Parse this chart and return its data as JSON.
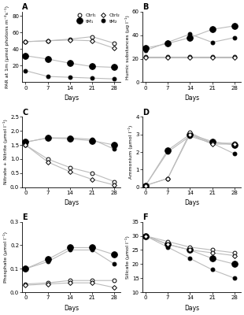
{
  "days": [
    0,
    7,
    14,
    21,
    28
  ],
  "panel_A": {
    "title": "A",
    "ylabel": "PAR at 1m (μmol photons m⁻²s⁻¹)",
    "xlabel": "Days",
    "ylim": [
      0,
      85
    ],
    "yticks": [
      20,
      40,
      60,
      80
    ],
    "ctrl1": [
      49,
      50,
      52,
      55,
      47
    ],
    "ctrl2": [
      49,
      50,
      51,
      50,
      41
    ],
    "tM1": [
      32,
      28,
      23,
      19,
      18
    ],
    "tM2": [
      14,
      7,
      6,
      5,
      4
    ]
  },
  "panel_B": {
    "title": "B",
    "ylabel": "Humic substances (μg l⁻¹)",
    "xlabel": "Days",
    "ylim": [
      0,
      60
    ],
    "yticks": [
      0,
      20,
      40,
      60
    ],
    "ctrl1": [
      22,
      22,
      22,
      22,
      22
    ],
    "ctrl2": [
      21,
      21,
      21,
      21,
      21
    ],
    "tM1": [
      29,
      33,
      38,
      45,
      48
    ],
    "tM2": [
      27,
      34,
      41,
      34,
      38
    ]
  },
  "panel_C": {
    "title": "C",
    "ylabel": "Nitrate + Nitrite (μmol l⁻¹)",
    "xlabel": "Days",
    "ylim": [
      0,
      2.5
    ],
    "yticks": [
      0,
      0.5,
      1.0,
      1.5,
      2.0,
      2.5
    ],
    "ctrl1": [
      1.5,
      1.0,
      0.7,
      0.5,
      0.2
    ],
    "ctrl2": [
      1.5,
      0.9,
      0.55,
      0.28,
      0.08
    ],
    "tM1": [
      1.6,
      1.75,
      1.72,
      1.65,
      1.5
    ],
    "tM2": [
      1.6,
      1.75,
      1.75,
      1.7,
      1.35
    ]
  },
  "panel_D": {
    "title": "D",
    "ylabel": "Ammonium (μmol l⁻¹)",
    "xlabel": "Days",
    "ylim": [
      0,
      4
    ],
    "yticks": [
      0,
      1,
      2,
      3,
      4
    ],
    "ctrl1": [
      0.1,
      0.5,
      3.1,
      2.5,
      2.5
    ],
    "ctrl2": [
      0.1,
      0.5,
      3.0,
      2.45,
      2.45
    ],
    "tM1": [
      0.1,
      2.1,
      3.0,
      2.6,
      2.4
    ],
    "tM2": [
      0.1,
      2.0,
      2.9,
      2.5,
      1.9
    ]
  },
  "panel_E": {
    "title": "E",
    "ylabel": "Phosphate (μmol l⁻¹)",
    "xlabel": "Days",
    "ylim": [
      0,
      0.3
    ],
    "yticks": [
      0,
      0.1,
      0.2,
      0.3
    ],
    "ctrl1": [
      0.035,
      0.04,
      0.05,
      0.05,
      0.05
    ],
    "ctrl2": [
      0.03,
      0.035,
      0.04,
      0.04,
      0.02
    ],
    "tM1": [
      0.1,
      0.14,
      0.19,
      0.19,
      0.16
    ],
    "tM2": [
      0.1,
      0.13,
      0.18,
      0.18,
      0.12
    ]
  },
  "panel_F": {
    "title": "F",
    "ylabel": "Silicate (μmol l⁻¹)",
    "xlabel": "Days",
    "ylim": [
      10,
      35
    ],
    "yticks": [
      10,
      15,
      20,
      25,
      30,
      35
    ],
    "ctrl1": [
      30,
      28,
      26,
      25,
      24
    ],
    "ctrl2": [
      30,
      27,
      25,
      24,
      23
    ],
    "tM1": [
      30,
      27,
      25,
      22,
      20
    ],
    "tM2": [
      30,
      26,
      22,
      18,
      15
    ]
  },
  "legend": {
    "ctrl1_label": "Ctrl₁",
    "ctrl2_label": "Ctrl₂",
    "tM1_label": "tM₁",
    "tM2_label": "tM₂"
  }
}
